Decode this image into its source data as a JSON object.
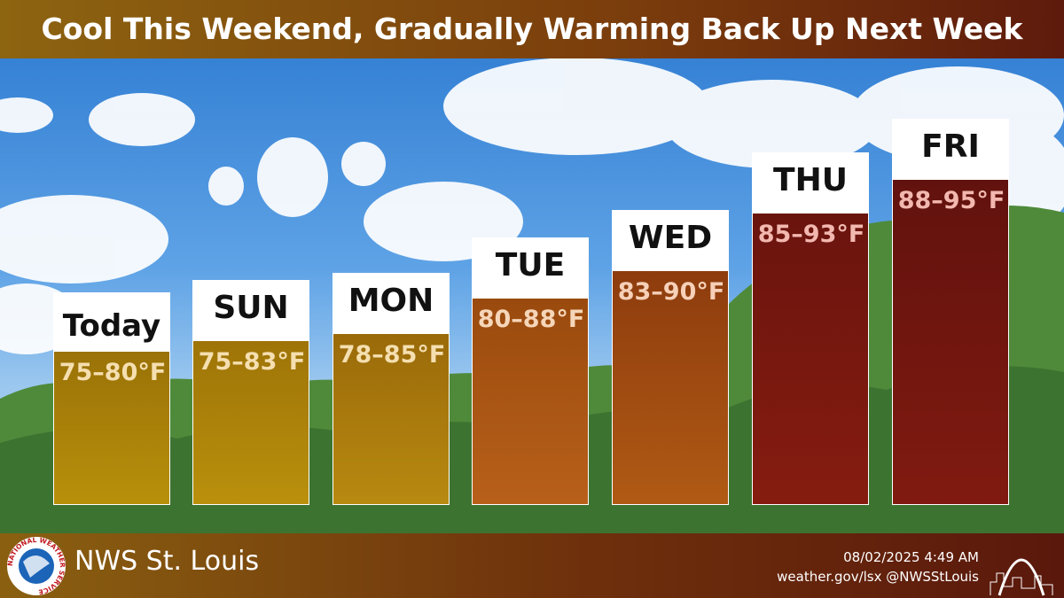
{
  "header": {
    "title": "Cool This Weekend, Gradually Warming Back Up Next Week"
  },
  "days": [
    {
      "label": "Today",
      "range": "75–80°F"
    },
    {
      "label": "SUN",
      "range": "75–83°F"
    },
    {
      "label": "MON",
      "range": "78–85°F"
    },
    {
      "label": "TUE",
      "range": "80–88°F"
    },
    {
      "label": "WED",
      "range": "83–90°F"
    },
    {
      "label": "THU",
      "range": "85–93°F"
    },
    {
      "label": "FRI",
      "range": "88–95°F"
    }
  ],
  "footer": {
    "office": "NWS St. Louis",
    "timestamp": "08/02/2025 4:49 AM",
    "links": "weather.gov/lsx @NWSStLouis",
    "logo_text": "NATIONAL WEATHER SERVICE"
  }
}
